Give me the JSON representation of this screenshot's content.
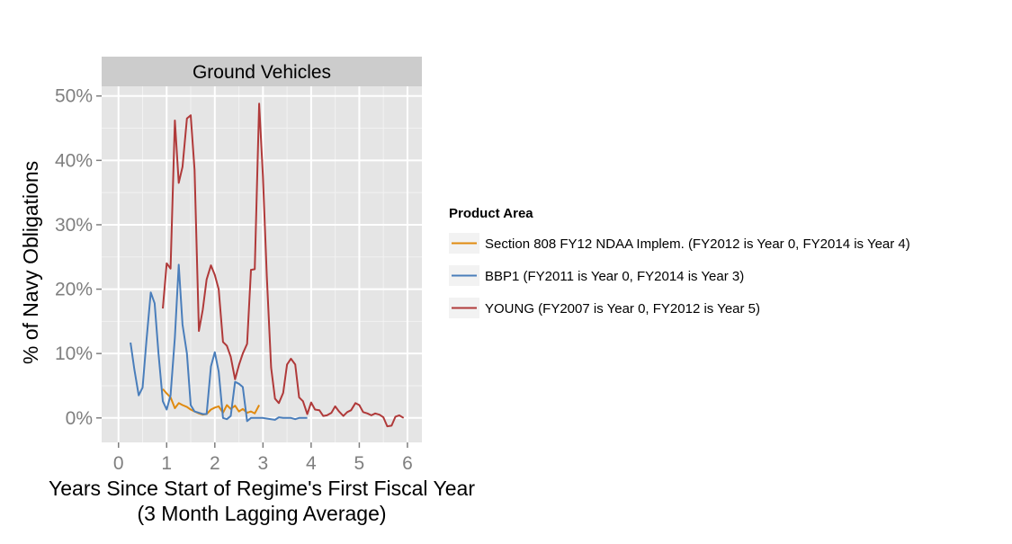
{
  "chart_data": {
    "type": "line",
    "facet_title": "Ground Vehicles",
    "xlabel_line1": "Years Since Start of Regime's First Fiscal Year",
    "xlabel_line2": "(3 Month Lagging Average)",
    "ylabel": "% of Navy Obligations",
    "xlim": [
      -0.35,
      6.3
    ],
    "ylim": [
      -3.8,
      51.5
    ],
    "x_ticks": [
      0,
      1,
      2,
      3,
      4,
      5,
      6
    ],
    "x_tick_labels": [
      "0",
      "1",
      "2",
      "3",
      "4",
      "5",
      "6"
    ],
    "y_ticks": [
      0,
      10,
      20,
      30,
      40,
      50
    ],
    "y_tick_labels": [
      "0%",
      "10%",
      "20%",
      "30%",
      "40%",
      "50%"
    ],
    "grid": true,
    "legend_position": "right",
    "legend_title": "Product Area",
    "series": [
      {
        "name": "Section 808 FY12 NDAA Implem. (FY2012 is Year 0, FY2014 is Year 4)",
        "color": "#e08a0f",
        "x": [
          0.92,
          1.0,
          1.08,
          1.17,
          1.25,
          1.33,
          1.42,
          1.5,
          1.58,
          1.67,
          1.75,
          1.83,
          1.92,
          2.0,
          2.08,
          2.17,
          2.25,
          2.33,
          2.42,
          2.5,
          2.58,
          2.67,
          2.75,
          2.83,
          2.92
        ],
        "y": [
          4.5,
          3.8,
          3.2,
          1.5,
          2.3,
          2.0,
          1.7,
          1.3,
          1.0,
          0.7,
          0.5,
          0.6,
          1.3,
          1.6,
          1.8,
          0.8,
          2.0,
          1.4,
          1.9,
          1.0,
          1.4,
          0.8,
          1.0,
          0.7,
          2.0
        ]
      },
      {
        "name": "BBP1 (FY2011 is Year 0, FY2014 is Year 3)",
        "color": "#4a7ebb",
        "x": [
          0.25,
          0.33,
          0.42,
          0.5,
          0.58,
          0.67,
          0.75,
          0.83,
          0.92,
          1.0,
          1.08,
          1.17,
          1.25,
          1.33,
          1.42,
          1.5,
          1.58,
          1.67,
          1.75,
          1.83,
          1.92,
          2.0,
          2.08,
          2.17,
          2.25,
          2.33,
          2.42,
          2.5,
          2.58,
          2.67,
          2.75,
          2.83,
          2.92,
          3.0,
          3.08,
          3.17,
          3.25,
          3.33,
          3.42,
          3.5,
          3.58,
          3.67,
          3.75,
          3.83,
          3.92
        ],
        "y": [
          11.7,
          7.5,
          3.5,
          4.7,
          12.0,
          19.5,
          17.8,
          10.0,
          2.6,
          1.3,
          3.5,
          12.5,
          23.8,
          14.5,
          10.0,
          2.0,
          1.0,
          0.8,
          0.6,
          0.6,
          8.0,
          10.2,
          7.2,
          0.0,
          -0.2,
          0.3,
          5.6,
          5.3,
          4.8,
          -0.5,
          0.0,
          0.0,
          0.0,
          0.0,
          -0.1,
          -0.2,
          -0.3,
          0.1,
          0.0,
          0.0,
          0.0,
          -0.2,
          0.0,
          0.0,
          0.0
        ]
      },
      {
        "name": "YOUNG (FY2007 is Year 0, FY2012 is Year 5)",
        "color": "#b03a3a",
        "x": [
          0.92,
          1.0,
          1.08,
          1.17,
          1.25,
          1.33,
          1.42,
          1.5,
          1.58,
          1.67,
          1.75,
          1.83,
          1.92,
          2.0,
          2.08,
          2.17,
          2.25,
          2.33,
          2.42,
          2.5,
          2.58,
          2.67,
          2.75,
          2.83,
          2.92,
          3.0,
          3.08,
          3.17,
          3.25,
          3.33,
          3.42,
          3.5,
          3.58,
          3.67,
          3.75,
          3.83,
          3.92,
          4.0,
          4.08,
          4.17,
          4.25,
          4.33,
          4.42,
          4.5,
          4.58,
          4.67,
          4.75,
          4.83,
          4.92,
          5.0,
          5.08,
          5.17,
          5.25,
          5.33,
          5.42,
          5.5,
          5.58,
          5.67,
          5.75,
          5.83,
          5.92
        ],
        "y": [
          17.0,
          24.0,
          23.2,
          46.2,
          36.5,
          39.0,
          46.5,
          47.0,
          38.5,
          13.5,
          16.8,
          21.5,
          23.7,
          22.2,
          20.0,
          11.8,
          11.2,
          9.5,
          6.0,
          8.2,
          10.0,
          11.5,
          23.0,
          23.1,
          48.8,
          37.5,
          22.0,
          7.8,
          3.0,
          2.3,
          3.9,
          8.3,
          9.2,
          8.3,
          3.2,
          2.6,
          0.6,
          2.4,
          1.3,
          1.2,
          0.3,
          0.4,
          0.8,
          1.8,
          1.0,
          0.3,
          0.9,
          1.2,
          2.3,
          2.0,
          0.9,
          0.7,
          0.4,
          0.7,
          0.5,
          0.1,
          -1.3,
          -1.2,
          0.2,
          0.4,
          0.0
        ]
      }
    ]
  }
}
